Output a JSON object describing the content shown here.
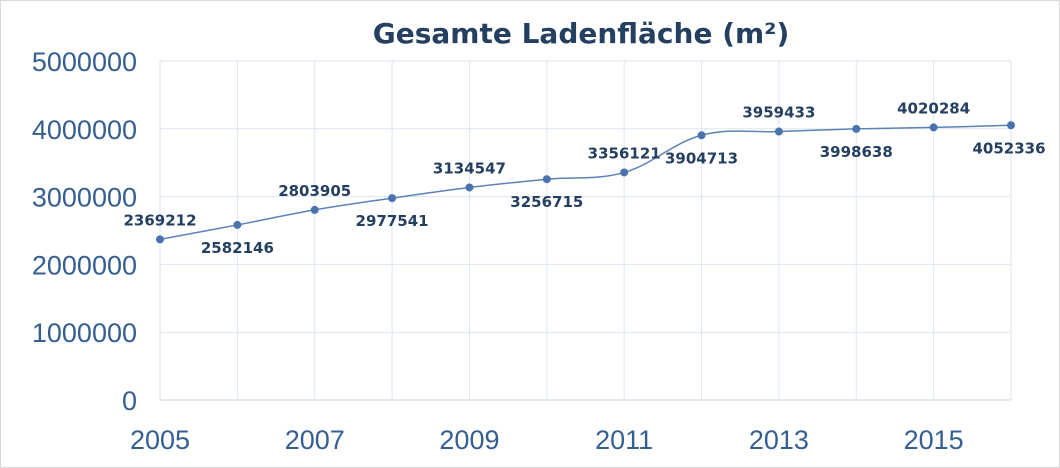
{
  "chart_data": {
    "type": "line",
    "title": "Gesamte Ladenfläche (m²)",
    "xlabel": "",
    "ylabel": "",
    "x": [
      2005,
      2006,
      2007,
      2008,
      2009,
      2010,
      2011,
      2012,
      2013,
      2014,
      2015,
      2016
    ],
    "x_tick_labels": [
      "2005",
      "2007",
      "2009",
      "2011",
      "2013",
      "2015"
    ],
    "y_tick_labels": [
      "0",
      "1000000",
      "2000000",
      "3000000",
      "4000000",
      "5000000"
    ],
    "ylim": [
      0,
      5000000
    ],
    "grid": true,
    "legend": "none",
    "series": [
      {
        "values": [
          2369212,
          2582146,
          2803905,
          2977541,
          3134547,
          3256715,
          3356121,
          3904713,
          3959433,
          3998638,
          4020284,
          4052336
        ],
        "labels": [
          "2369212",
          "2582146",
          "2803905",
          "2977541",
          "3134547",
          "3256715",
          "3356121",
          "3904713",
          "3959433",
          "3998638",
          "4020284",
          "4052336"
        ],
        "color": "#4a73ad",
        "smooth": true
      }
    ]
  }
}
